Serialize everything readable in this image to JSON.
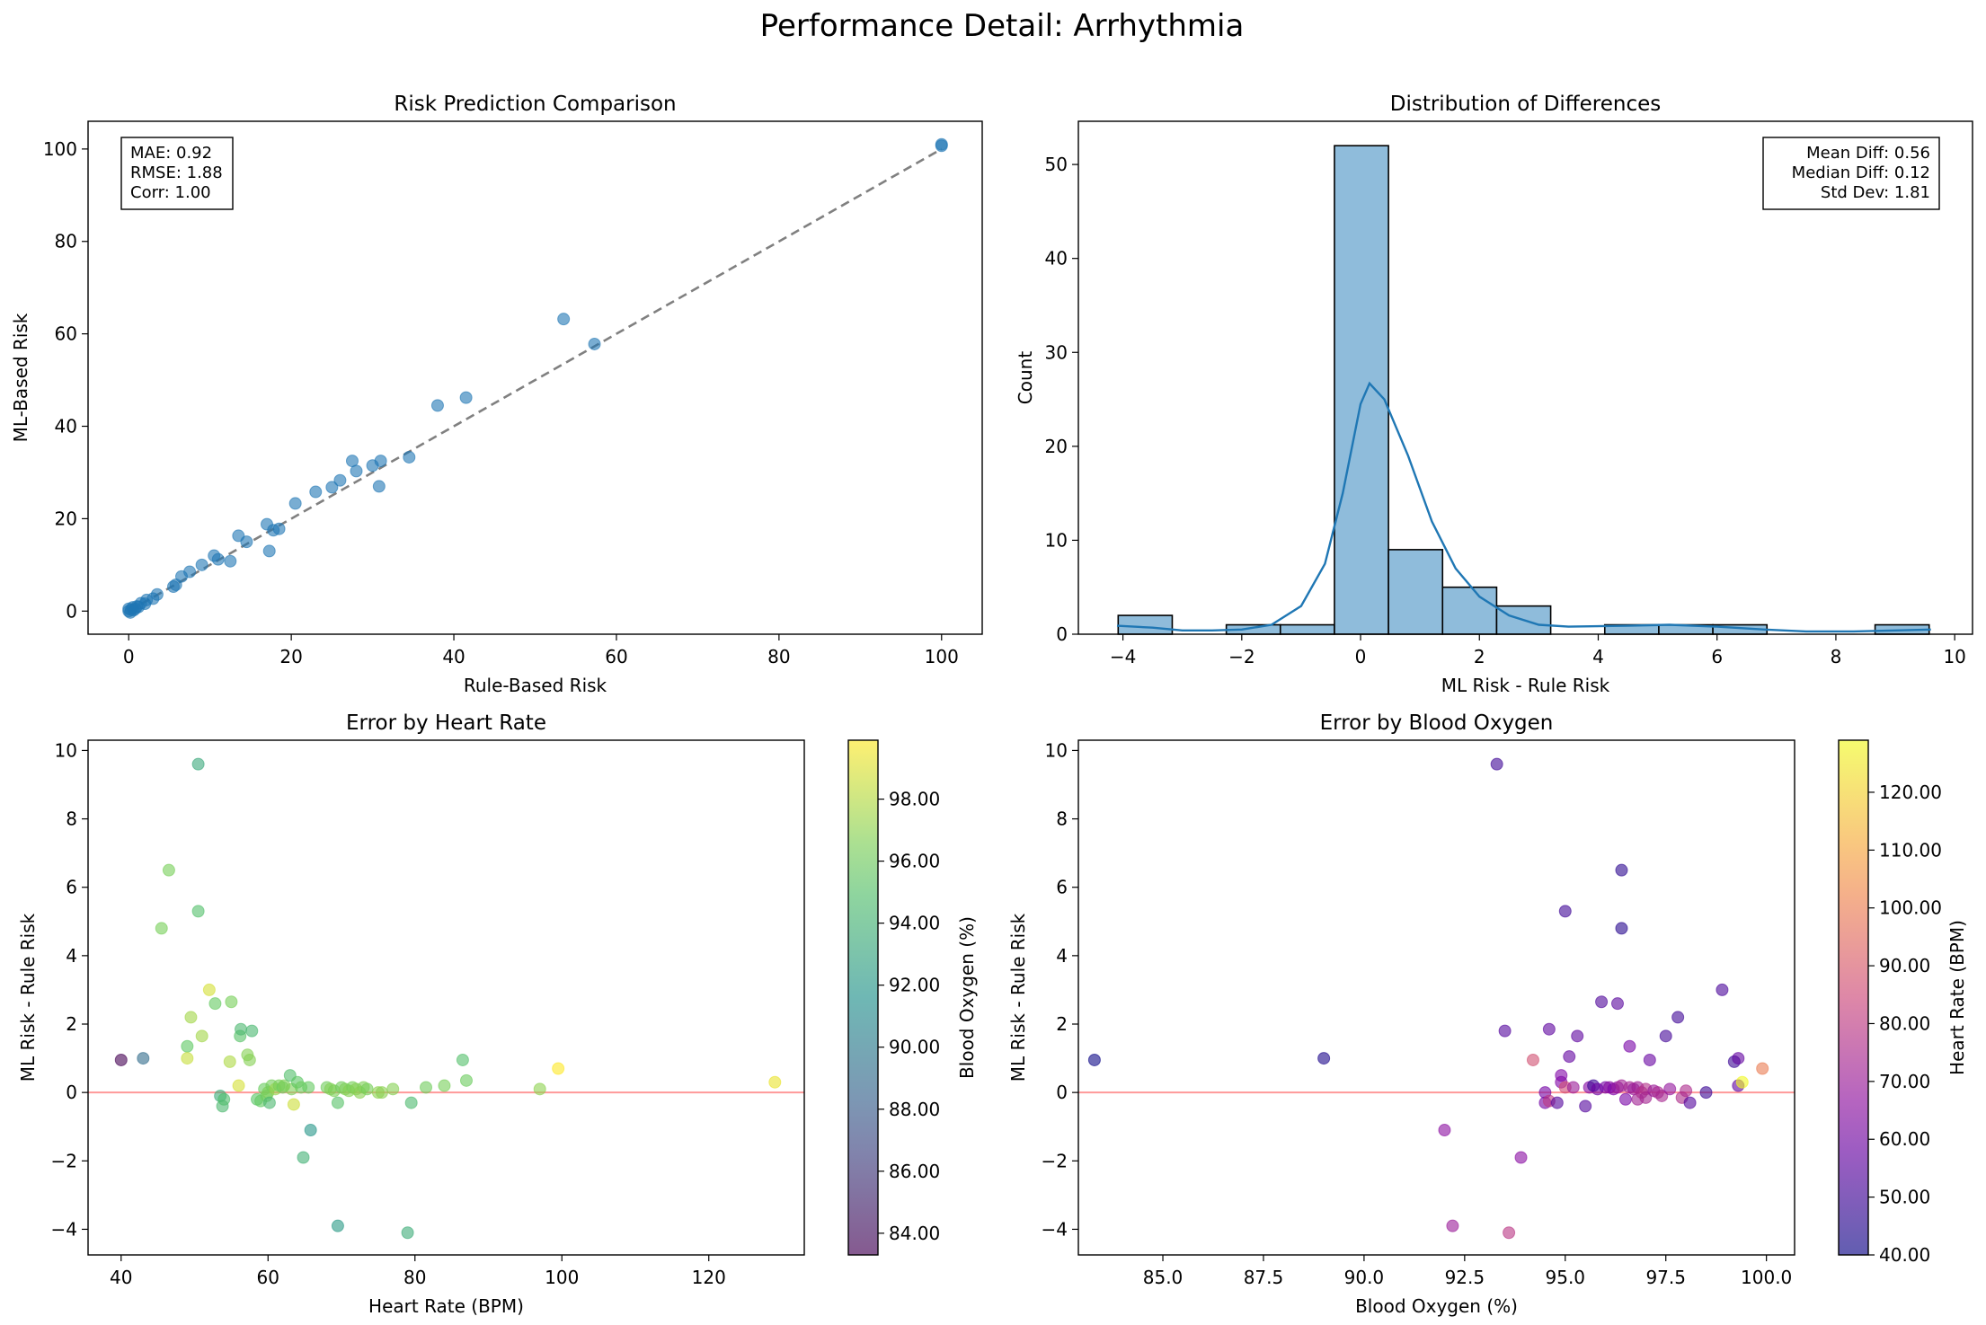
{
  "figure": {
    "suptitle": "Performance Detail: Arrhythmia"
  },
  "chart_data": [
    {
      "type": "scatter",
      "title": "Risk Prediction Comparison",
      "xlabel": "Rule-Based Risk",
      "ylabel": "ML-Based Risk",
      "xlim": [
        -5,
        105
      ],
      "ylim": [
        -5,
        106
      ],
      "xticks": [
        0,
        20,
        40,
        60,
        80,
        100
      ],
      "yticks": [
        0,
        20,
        40,
        60,
        80,
        100
      ],
      "tick_format": 0,
      "color": "#1f77b4",
      "reference_line": {
        "from": [
          0,
          0
        ],
        "to": [
          100,
          100
        ],
        "style": "dashed",
        "color": "#808080"
      },
      "annotation": {
        "lines": [
          "MAE: 0.92",
          "RMSE: 1.88",
          "Corr: 1.00"
        ],
        "placement": "top-left"
      },
      "points": [
        [
          0,
          0
        ],
        [
          0,
          0.5
        ],
        [
          0.2,
          -0.3
        ],
        [
          0.3,
          0.3
        ],
        [
          0.5,
          0.8
        ],
        [
          0.6,
          0.2
        ],
        [
          0.8,
          0.5
        ],
        [
          1,
          1
        ],
        [
          1.2,
          0.9
        ],
        [
          1.5,
          1.7
        ],
        [
          2,
          1.6
        ],
        [
          2.2,
          2.4
        ],
        [
          3,
          2.7
        ],
        [
          3.5,
          3.6
        ],
        [
          5.5,
          5.3
        ],
        [
          5.8,
          5.7
        ],
        [
          6.5,
          7.5
        ],
        [
          7.5,
          8.5
        ],
        [
          9,
          10
        ],
        [
          10.5,
          12
        ],
        [
          11,
          11.2
        ],
        [
          12.5,
          10.8
        ],
        [
          13.5,
          16.3
        ],
        [
          14.5,
          15
        ],
        [
          17,
          18.8
        ],
        [
          17.3,
          13
        ],
        [
          17.8,
          17.5
        ],
        [
          18.5,
          17.8
        ],
        [
          20.5,
          23.3
        ],
        [
          23,
          25.8
        ],
        [
          25,
          26.8
        ],
        [
          26,
          28.3
        ],
        [
          27.5,
          32.5
        ],
        [
          28,
          30.3
        ],
        [
          30,
          31.5
        ],
        [
          30.8,
          27
        ],
        [
          31,
          32.5
        ],
        [
          34.5,
          33.3
        ],
        [
          38,
          44.5
        ],
        [
          41.5,
          46.2
        ],
        [
          53.5,
          63.2
        ],
        [
          57.3,
          57.8
        ],
        [
          100,
          101
        ],
        [
          100,
          100.7
        ]
      ]
    },
    {
      "type": "histogram",
      "title": "Distribution of Differences",
      "xlabel": "ML Risk - Rule Risk",
      "ylabel": "Count",
      "xlim": [
        -4.75,
        10.3
      ],
      "ylim": [
        0,
        54.6
      ],
      "xticks": [
        -4,
        -2,
        0,
        2,
        4,
        6,
        8,
        10
      ],
      "yticks": [
        0,
        10,
        20,
        30,
        40,
        50
      ],
      "tick_format": 0,
      "bar_color": "#8fbcdb",
      "line_color": "#1f77b4",
      "bin_edges": [
        -4.08,
        -3.17,
        -2.26,
        -1.35,
        -0.44,
        0.47,
        1.38,
        2.29,
        3.2,
        4.11,
        5.02,
        5.93,
        6.84,
        7.75,
        8.66,
        9.57
      ],
      "counts": [
        2,
        0,
        1,
        1,
        52,
        9,
        5,
        3,
        0,
        1,
        1,
        1,
        0,
        0,
        1
      ],
      "kde": [
        [
          -4.1,
          0.9
        ],
        [
          -3.5,
          0.7
        ],
        [
          -3,
          0.4
        ],
        [
          -2.5,
          0.4
        ],
        [
          -2,
          0.5
        ],
        [
          -1.5,
          1
        ],
        [
          -1,
          3
        ],
        [
          -0.6,
          7.5
        ],
        [
          -0.3,
          15
        ],
        [
          0,
          24.5
        ],
        [
          0.15,
          26.7
        ],
        [
          0.4,
          25
        ],
        [
          0.8,
          19
        ],
        [
          1.2,
          12
        ],
        [
          1.6,
          7
        ],
        [
          2,
          4
        ],
        [
          2.5,
          2
        ],
        [
          3,
          1
        ],
        [
          3.5,
          0.8
        ],
        [
          4.5,
          0.9
        ],
        [
          5.2,
          1
        ],
        [
          6,
          0.8
        ],
        [
          6.8,
          0.5
        ],
        [
          7.5,
          0.3
        ],
        [
          8.3,
          0.3
        ],
        [
          9,
          0.4
        ],
        [
          9.6,
          0.5
        ]
      ],
      "annotation": {
        "lines": [
          "Mean Diff: 0.56",
          "Median Diff: 0.12",
          "Std Dev: 1.81"
        ],
        "placement": "top-right"
      }
    },
    {
      "type": "scatter",
      "title": "Error by Heart Rate",
      "xlabel": "Heart Rate (BPM)",
      "ylabel": "ML Risk - Rule Risk",
      "xlim": [
        35.5,
        133
      ],
      "ylim": [
        -4.75,
        10.3
      ],
      "xticks": [
        40,
        60,
        80,
        100,
        120
      ],
      "yticks": [
        -4,
        -2,
        0,
        2,
        4,
        6,
        8,
        10
      ],
      "tick_format": 0,
      "reference_line": {
        "y": 0,
        "color": "#ff9999"
      },
      "colorbar": {
        "label": "Blood Oxygen (%)",
        "min": 83.3,
        "max": 99.9,
        "ticks": [
          84,
          86,
          88,
          90,
          92,
          94,
          96,
          98
        ],
        "tick_format": 2,
        "colormap": "viridis"
      },
      "points": [
        [
          40,
          0.95,
          83.3
        ],
        [
          43,
          1,
          89
        ],
        [
          45.5,
          4.8,
          96.4
        ],
        [
          46.5,
          6.5,
          96.4
        ],
        [
          49,
          1.35,
          95.7
        ],
        [
          49,
          1,
          98.5
        ],
        [
          49.5,
          2.2,
          97.5
        ],
        [
          50.5,
          5.3,
          95
        ],
        [
          50.5,
          9.6,
          93.3
        ],
        [
          51,
          1.65,
          97.5
        ],
        [
          52,
          3,
          98.8
        ],
        [
          52.8,
          2.6,
          95.9
        ],
        [
          53.5,
          -0.1,
          93.5
        ],
        [
          53.8,
          -0.4,
          94.5
        ],
        [
          54,
          -0.2,
          94.8
        ],
        [
          54.8,
          0.9,
          97.8
        ],
        [
          55,
          2.65,
          96.4
        ],
        [
          56,
          0.2,
          98.8
        ],
        [
          56.2,
          1.65,
          95.2
        ],
        [
          56.3,
          1.85,
          94.5
        ],
        [
          57.2,
          1.1,
          96.8
        ],
        [
          57.5,
          0.95,
          96.8
        ],
        [
          57.8,
          1.8,
          94.4
        ],
        [
          58.5,
          -0.2,
          95.4
        ],
        [
          59,
          -0.25,
          95.8
        ],
        [
          59.5,
          0.1,
          96
        ],
        [
          59.8,
          -0.1,
          96.2
        ],
        [
          60,
          0,
          96.5
        ],
        [
          60.2,
          -0.3,
          94.5
        ],
        [
          60.5,
          0.2,
          96.3
        ],
        [
          61,
          0.1,
          97.2
        ],
        [
          61.5,
          0.2,
          96.4
        ],
        [
          62,
          0.15,
          96.1
        ],
        [
          62.2,
          0.2,
          96.6
        ],
        [
          63,
          0.5,
          94.9
        ],
        [
          63.2,
          0.1,
          96.6
        ],
        [
          63.5,
          -0.35,
          98.6
        ],
        [
          64,
          0.3,
          95.6
        ],
        [
          64.5,
          0.15,
          96.1
        ],
        [
          64.8,
          -1.9,
          93.9
        ],
        [
          65.5,
          0.15,
          95.9
        ],
        [
          65.8,
          -1.1,
          92
        ],
        [
          68,
          0.15,
          96.2
        ],
        [
          68.5,
          0.1,
          96.7
        ],
        [
          69,
          0.05,
          96.5
        ],
        [
          69.5,
          -3.9,
          92.2
        ],
        [
          69.5,
          -0.3,
          95.2
        ],
        [
          70,
          0.15,
          96.2
        ],
        [
          70.5,
          0.1,
          96.6
        ],
        [
          71,
          0.05,
          96.8
        ],
        [
          71.5,
          0.15,
          96.4
        ],
        [
          72,
          0.1,
          96.8
        ],
        [
          72.5,
          0,
          96.9
        ],
        [
          73,
          0.15,
          96.6
        ],
        [
          73.5,
          0.1,
          96.4
        ],
        [
          75,
          0,
          97
        ],
        [
          75.5,
          0,
          96.9
        ],
        [
          77,
          0.1,
          96.8
        ],
        [
          79,
          -4.1,
          93.6
        ],
        [
          79.5,
          -0.3,
          94.6
        ],
        [
          81.5,
          0.15,
          96.2
        ],
        [
          84,
          0.2,
          96.4
        ],
        [
          86.5,
          0.95,
          95
        ],
        [
          87,
          0.35,
          96.1
        ],
        [
          97,
          0.1,
          97
        ],
        [
          99.5,
          0.7,
          99.9
        ],
        [
          129,
          0.3,
          99.4
        ]
      ]
    },
    {
      "type": "scatter",
      "title": "Error by Blood Oxygen",
      "xlabel": "Blood Oxygen (%)",
      "ylabel": "ML Risk - Rule Risk",
      "xlim": [
        82.9,
        100.7
      ],
      "ylim": [
        -4.75,
        10.3
      ],
      "xticks": [
        85.0,
        87.5,
        90.0,
        92.5,
        95.0,
        97.5,
        100.0
      ],
      "yticks": [
        -4,
        -2,
        0,
        2,
        4,
        6,
        8,
        10
      ],
      "tick_format": 1,
      "y_tick_format": 0,
      "reference_line": {
        "y": 0,
        "color": "#ff9999"
      },
      "colorbar": {
        "label": "Heart Rate (BPM)",
        "min": 40,
        "max": 129,
        "ticks": [
          40,
          50,
          60,
          70,
          80,
          90,
          100,
          110,
          120
        ],
        "tick_format": 2,
        "colormap": "plasma"
      },
      "points": [
        [
          83.3,
          0.95,
          40
        ],
        [
          89,
          1,
          43
        ],
        [
          92,
          -1.1,
          66
        ],
        [
          92.2,
          -3.9,
          70
        ],
        [
          93.3,
          9.6,
          50
        ],
        [
          93.5,
          1.8,
          54
        ],
        [
          93.6,
          -4.1,
          79
        ],
        [
          93.9,
          -1.9,
          65
        ],
        [
          94.2,
          0.95,
          87
        ],
        [
          94.5,
          0,
          60
        ],
        [
          94.5,
          -0.3,
          60
        ],
        [
          94.6,
          1.85,
          56
        ],
        [
          94.6,
          -0.25,
          80
        ],
        [
          94.8,
          -0.3,
          54
        ],
        [
          94.9,
          0.3,
          63
        ],
        [
          94.9,
          0.5,
          63
        ],
        [
          95,
          0.15,
          86
        ],
        [
          95,
          5.3,
          50
        ],
        [
          95.1,
          1.05,
          57
        ],
        [
          95.2,
          0.15,
          70
        ],
        [
          95.3,
          1.65,
          56
        ],
        [
          95.5,
          -0.4,
          54
        ],
        [
          95.6,
          0.15,
          64
        ],
        [
          95.7,
          0.2,
          49
        ],
        [
          95.8,
          0.1,
          59
        ],
        [
          95.9,
          2.65,
          53
        ],
        [
          96,
          0.15,
          60
        ],
        [
          96.1,
          0.15,
          65
        ],
        [
          96.2,
          0.1,
          62
        ],
        [
          96.3,
          0.15,
          68
        ],
        [
          96.3,
          2.6,
          55
        ],
        [
          96.4,
          6.5,
          46
        ],
        [
          96.4,
          4.8,
          45
        ],
        [
          96.4,
          0.2,
          72
        ],
        [
          96.5,
          -0.2,
          61
        ],
        [
          96.6,
          1.35,
          61
        ],
        [
          96.6,
          0.15,
          73
        ],
        [
          96.7,
          0.1,
          69
        ],
        [
          96.8,
          -0.2,
          72
        ],
        [
          96.8,
          0.15,
          71
        ],
        [
          96.9,
          0,
          75
        ],
        [
          97,
          0.1,
          77
        ],
        [
          97,
          -0.15,
          73
        ],
        [
          97.1,
          0.95,
          58
        ],
        [
          97.2,
          0.05,
          70
        ],
        [
          97.3,
          0,
          74
        ],
        [
          97.4,
          -0.1,
          74
        ],
        [
          97.5,
          1.65,
          51
        ],
        [
          97.6,
          0.1,
          68
        ],
        [
          97.8,
          2.2,
          50
        ],
        [
          97.9,
          -0.15,
          76
        ],
        [
          98,
          0.05,
          75
        ],
        [
          98.1,
          -0.3,
          54
        ],
        [
          98.5,
          0,
          49
        ],
        [
          98.9,
          3,
          52
        ],
        [
          99.2,
          0.9,
          49
        ],
        [
          99.3,
          1,
          57
        ],
        [
          99.3,
          0.2,
          56
        ],
        [
          99.4,
          0.3,
          129
        ],
        [
          99.9,
          0.7,
          99.5
        ]
      ]
    }
  ]
}
